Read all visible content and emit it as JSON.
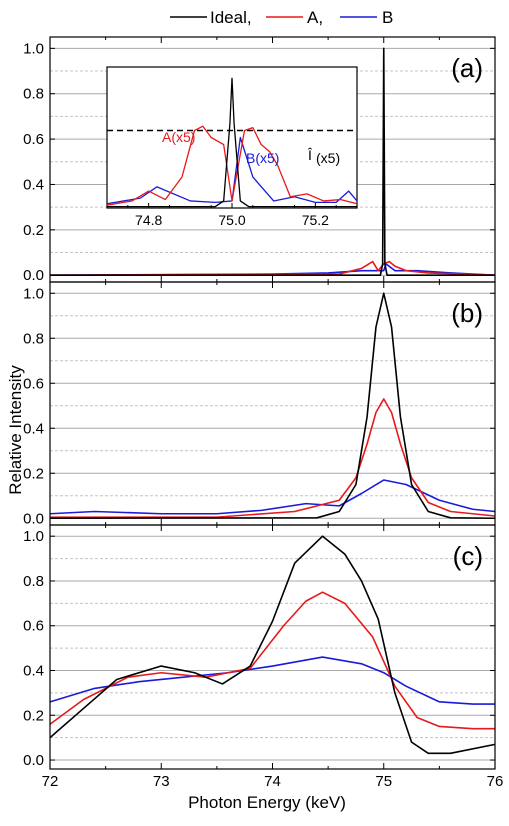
{
  "colors": {
    "ideal": "#000000",
    "A": "#e8191a",
    "B": "#1a1adb",
    "grid_major": "#aaaaaa",
    "grid_minor": "#c4c4c4"
  },
  "legend": [
    {
      "label": "Ideal,",
      "color": "#000000"
    },
    {
      "label": "A,",
      "color": "#e8191a"
    },
    {
      "label": "B",
      "color": "#1a1adb"
    }
  ],
  "axes": {
    "xlabel": "Photon Energy (keV)",
    "ylabel": "Relative Intensity",
    "x_ticks": [
      "72",
      "73",
      "74",
      "75",
      "76"
    ],
    "y_ticks": [
      "0.0",
      "0.2",
      "0.4",
      "0.6",
      "0.8",
      "1.0"
    ]
  },
  "inset": {
    "x_ticks": [
      "74.8",
      "75.0",
      "75.2"
    ],
    "annotation_A": "A(x5)",
    "annotation_B": "B(x5)",
    "annotation_I_hat": "Î",
    "annotation_I_sub": "(x5)"
  },
  "chart_data": [
    {
      "panel": "(a)",
      "type": "line",
      "xlim": [
        72,
        76
      ],
      "ylim": [
        -0.03,
        1.05
      ],
      "grid": true,
      "legend_position": "top-center",
      "series": [
        {
          "name": "Ideal",
          "x": [
            72,
            74.9,
            74.97,
            74.99,
            75.0,
            75.01,
            75.03,
            75.1,
            76
          ],
          "y": [
            0,
            0,
            0,
            0.05,
            1.0,
            0.05,
            0,
            0,
            0
          ]
        },
        {
          "name": "A",
          "x": [
            72,
            74.6,
            74.8,
            74.9,
            74.95,
            75.0,
            75.05,
            75.1,
            75.2,
            75.4,
            76
          ],
          "y": [
            0,
            0.005,
            0.03,
            0.06,
            0.02,
            0.05,
            0.06,
            0.04,
            0.02,
            0.01,
            0
          ]
        },
        {
          "name": "B",
          "x": [
            72,
            74.0,
            74.5,
            74.8,
            75.0,
            75.02,
            75.1,
            75.3,
            75.6,
            76
          ],
          "y": [
            0,
            0.005,
            0.01,
            0.02,
            0.02,
            0.05,
            0.02,
            0.02,
            0.01,
            0
          ]
        }
      ],
      "inset": {
        "xlim": [
          74.7,
          75.3
        ],
        "ylim": [
          0,
          1.0
        ],
        "reference_dashed_level": 0.55,
        "series": [
          {
            "name": "Ideal",
            "x": [
              74.7,
              74.96,
              74.98,
              74.995,
              75.0,
              75.005,
              75.02,
              75.04,
              75.1,
              75.3
            ],
            "y": [
              0.01,
              0.01,
              0.05,
              0.6,
              0.92,
              0.6,
              0.05,
              0.01,
              0.01,
              0.01
            ]
          },
          {
            "name": "A(x5)",
            "x": [
              74.7,
              74.76,
              74.8,
              74.84,
              74.88,
              74.91,
              74.93,
              74.95,
              74.98,
              75.0,
              75.03,
              75.05,
              75.07,
              75.09,
              75.11,
              75.14,
              75.18,
              75.22,
              75.26,
              75.3
            ],
            "y": [
              0.02,
              0.05,
              0.12,
              0.06,
              0.22,
              0.55,
              0.58,
              0.5,
              0.45,
              0.05,
              0.55,
              0.57,
              0.45,
              0.4,
              0.3,
              0.08,
              0.1,
              0.05,
              0.06,
              0.03
            ]
          },
          {
            "name": "B(x5)",
            "x": [
              74.7,
              74.78,
              74.82,
              74.9,
              74.96,
              75.0,
              75.02,
              75.05,
              75.1,
              75.15,
              75.2,
              75.25,
              75.28,
              75.3
            ],
            "y": [
              0.03,
              0.07,
              0.15,
              0.05,
              0.04,
              0.05,
              0.5,
              0.22,
              0.05,
              0.08,
              0.04,
              0.04,
              0.12,
              0.05
            ]
          }
        ]
      }
    },
    {
      "panel": "(b)",
      "type": "line",
      "xlim": [
        72,
        76
      ],
      "ylim": [
        -0.03,
        1.05
      ],
      "grid": true,
      "series": [
        {
          "name": "Ideal",
          "x": [
            72,
            74.4,
            74.6,
            74.75,
            74.85,
            74.93,
            75.0,
            75.07,
            75.15,
            75.25,
            75.4,
            75.6,
            76
          ],
          "y": [
            0.0,
            0.002,
            0.03,
            0.15,
            0.45,
            0.85,
            1.0,
            0.85,
            0.45,
            0.15,
            0.03,
            0.002,
            0.0
          ]
        },
        {
          "name": "A",
          "x": [
            72,
            73.5,
            74.2,
            74.6,
            74.75,
            74.85,
            74.93,
            75.0,
            75.07,
            75.15,
            75.25,
            75.4,
            75.6,
            76
          ],
          "y": [
            0.005,
            0.005,
            0.03,
            0.08,
            0.18,
            0.33,
            0.47,
            0.53,
            0.47,
            0.33,
            0.18,
            0.07,
            0.03,
            0.01
          ]
        },
        {
          "name": "B",
          "x": [
            72,
            72.4,
            73.0,
            73.5,
            73.9,
            74.3,
            74.6,
            74.8,
            75.0,
            75.2,
            75.5,
            75.8,
            76
          ],
          "y": [
            0.02,
            0.03,
            0.02,
            0.02,
            0.035,
            0.065,
            0.055,
            0.11,
            0.17,
            0.15,
            0.08,
            0.04,
            0.03
          ]
        }
      ]
    },
    {
      "panel": "(c)",
      "type": "line",
      "xlim": [
        72,
        76
      ],
      "ylim": [
        -0.04,
        1.05
      ],
      "grid": true,
      "series": [
        {
          "name": "Ideal",
          "x": [
            72,
            72.3,
            72.6,
            73.0,
            73.3,
            73.55,
            73.8,
            74.0,
            74.2,
            74.45,
            74.65,
            74.8,
            74.95,
            75.1,
            75.25,
            75.4,
            75.6,
            76
          ],
          "y": [
            0.1,
            0.23,
            0.36,
            0.42,
            0.39,
            0.34,
            0.42,
            0.62,
            0.88,
            1.0,
            0.92,
            0.8,
            0.63,
            0.3,
            0.08,
            0.03,
            0.03,
            0.07
          ]
        },
        {
          "name": "A",
          "x": [
            72,
            72.3,
            72.7,
            73.0,
            73.4,
            73.8,
            74.1,
            74.3,
            74.45,
            74.65,
            74.9,
            75.1,
            75.3,
            75.5,
            75.8,
            76
          ],
          "y": [
            0.16,
            0.27,
            0.37,
            0.39,
            0.37,
            0.41,
            0.6,
            0.71,
            0.75,
            0.7,
            0.55,
            0.33,
            0.19,
            0.15,
            0.14,
            0.14
          ]
        },
        {
          "name": "B",
          "x": [
            72,
            72.4,
            72.8,
            73.2,
            73.6,
            74.0,
            74.45,
            74.8,
            75.0,
            75.2,
            75.5,
            75.8,
            76
          ],
          "y": [
            0.26,
            0.32,
            0.35,
            0.37,
            0.39,
            0.42,
            0.46,
            0.43,
            0.39,
            0.33,
            0.26,
            0.25,
            0.25
          ]
        }
      ]
    }
  ]
}
